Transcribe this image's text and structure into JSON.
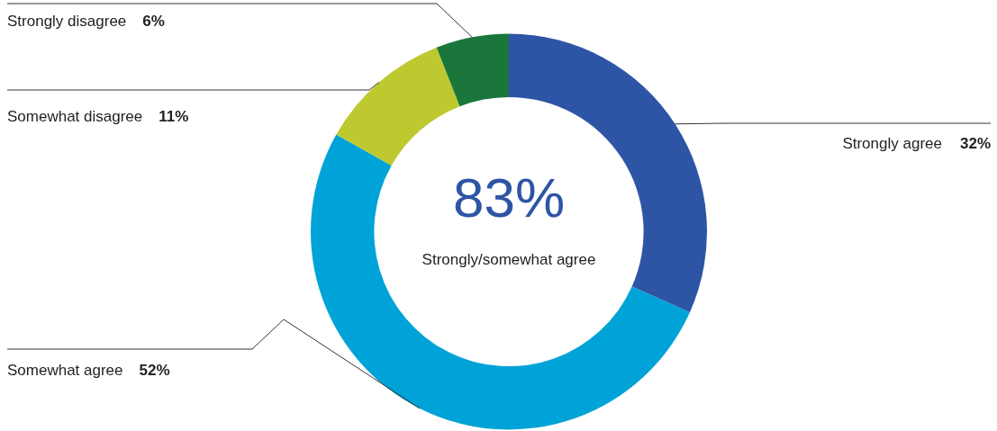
{
  "chart_data": {
    "type": "donut",
    "categories": [
      "Strongly agree",
      "Somewhat agree",
      "Somewhat disagree",
      "Strongly disagree"
    ],
    "values": [
      32,
      52,
      11,
      6
    ],
    "value_labels": [
      "32%",
      "52%",
      "11%",
      "6%"
    ],
    "colors": [
      "#2e55a5",
      "#00a3d7",
      "#bdc92e",
      "#1a763b"
    ],
    "annotations": [
      "83%",
      "Strongly/somewhat agree"
    ],
    "legend": false
  }
}
